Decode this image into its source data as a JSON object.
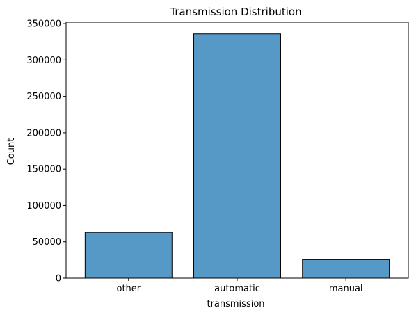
{
  "chart_data": {
    "type": "bar",
    "title": "Transmission Distribution",
    "xlabel": "transmission",
    "ylabel": "Count",
    "categories": [
      "other",
      "automatic",
      "manual"
    ],
    "values": [
      63000,
      336000,
      25500
    ],
    "ylim": [
      0,
      352000
    ],
    "yticks": [
      0,
      50000,
      100000,
      150000,
      200000,
      250000,
      300000,
      350000
    ],
    "ytick_labels": [
      "0",
      "50000",
      "100000",
      "150000",
      "200000",
      "250000",
      "300000",
      "350000"
    ],
    "bar_color": "#5799c6",
    "bar_edge_color": "#000000",
    "grid": false,
    "legend": "none"
  }
}
